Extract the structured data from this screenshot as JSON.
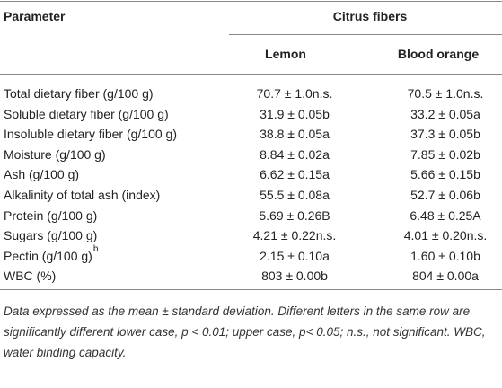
{
  "table": {
    "header": {
      "parameter": "Parameter",
      "group": "Citrus fibers",
      "columns": [
        "Lemon",
        "Blood orange"
      ]
    },
    "rows": [
      {
        "parameter": "Total dietary fiber (g/100 g)",
        "values": [
          "70.7 ± 1.0n.s.",
          "70.5 ± 1.0n.s."
        ]
      },
      {
        "parameter": "Soluble dietary fiber (g/100 g)",
        "values": [
          "31.9 ± 0.05b",
          "33.2 ± 0.05a"
        ]
      },
      {
        "parameter": "Insoluble dietary fiber (g/100 g)",
        "values": [
          "38.8 ± 0.05a",
          "37.3 ± 0.05b"
        ]
      },
      {
        "parameter": "Moisture (g/100 g)",
        "values": [
          "8.84 ± 0.02a",
          "7.85 ± 0.02b"
        ]
      },
      {
        "parameter": "Ash (g/100 g)",
        "values": [
          "6.62 ± 0.15a",
          "5.66 ± 0.15b"
        ]
      },
      {
        "parameter": "Alkalinity of total ash (index)",
        "values": [
          "55.5 ± 0.08a",
          "52.7 ± 0.06b"
        ]
      },
      {
        "parameter": "Protein (g/100 g)",
        "values": [
          "5.69 ± 0.26B",
          "6.48 ± 0.25A"
        ]
      },
      {
        "parameter": "Sugars (g/100 g)",
        "values": [
          "4.21 ± 0.22n.s.",
          "4.01 ± 0.20n.s."
        ]
      },
      {
        "parameter": "Pectin (g/100 g)",
        "superscript": "b",
        "values": [
          "2.15 ± 0.10a",
          "1.60 ± 0.10b"
        ]
      },
      {
        "parameter": "WBC (%)",
        "values": [
          "803 ± 0.00b",
          "804 ± 0.00a"
        ]
      }
    ],
    "footnote": "Data expressed as the mean ± standard deviation. Different letters in the same row are significantly different lower case, p < 0.01; upper case, p< 0.05; n.s., not significant. WBC, water binding capacity."
  }
}
